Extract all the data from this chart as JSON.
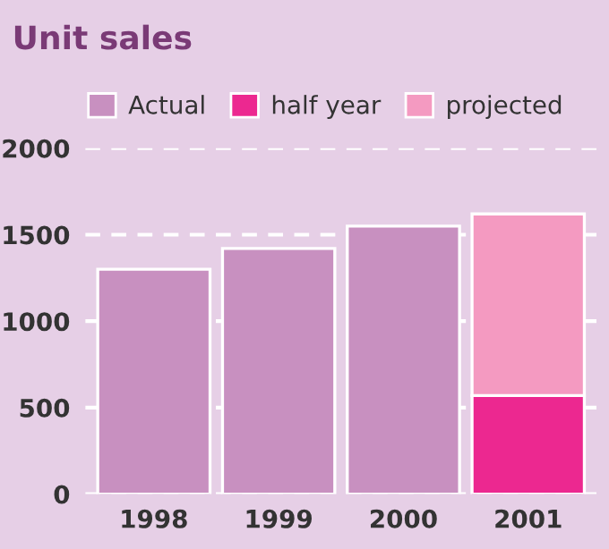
{
  "chart_data": {
    "type": "bar",
    "title": "Unit sales",
    "stacked": true,
    "categories": [
      "1998",
      "1999",
      "2000",
      "2001"
    ],
    "series": [
      {
        "name": "Actual",
        "color": "#c890c0",
        "values": [
          1300,
          1420,
          1550,
          null
        ]
      },
      {
        "name": "half year",
        "color": "#ec2890",
        "values": [
          null,
          null,
          null,
          570
        ]
      },
      {
        "name": "projected",
        "color": "#f49ac1",
        "values": [
          null,
          null,
          null,
          1050
        ]
      }
    ],
    "ylim": [
      0,
      2000
    ],
    "yticks": [
      0,
      500,
      1000,
      1500,
      2000
    ],
    "grid": "y",
    "legend": "top"
  }
}
